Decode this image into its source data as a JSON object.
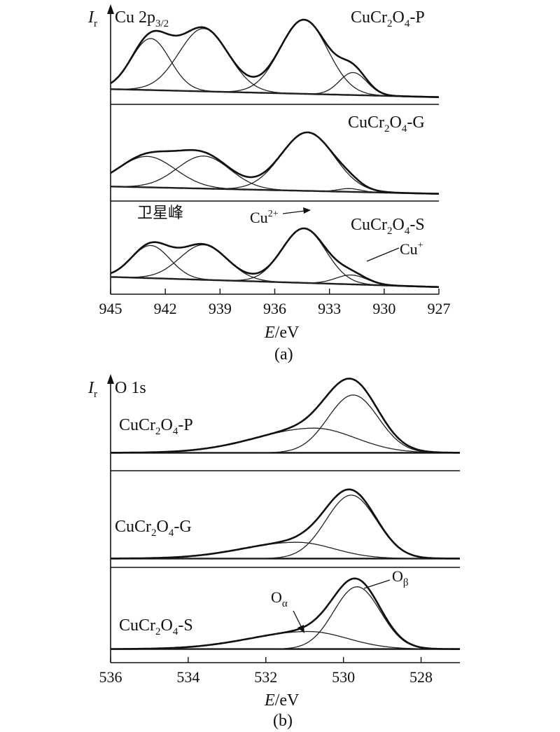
{
  "chart_data": [
    {
      "type": "line",
      "panel_label": "(a)",
      "axis_symbol": "I",
      "axis_subscript": "r",
      "element": "Cu 2p",
      "element_subscript": "3/2",
      "xlabel": "E",
      "xunit": "/eV",
      "xlim": [
        945,
        927
      ],
      "xticks": [
        "945",
        "942",
        "939",
        "936",
        "933",
        "930",
        "927"
      ],
      "annotation_satellite": "卫星峰",
      "annotation_cu2": "Cu",
      "annotation_cu2_sup": "2+",
      "annotation_cu1": "Cu",
      "annotation_cu1_sup": "+",
      "series": [
        {
          "formula": [
            "CuCr",
            "2",
            "O",
            "4",
            "-P"
          ],
          "peaks": [
            {
              "center": 942.8,
              "height": 0.64,
              "sigma": 1.05
            },
            {
              "center": 939.9,
              "height": 0.78,
              "sigma": 1.35
            },
            {
              "center": 934.4,
              "height": 0.92,
              "sigma": 1.3
            },
            {
              "center": 931.7,
              "height": 0.28,
              "sigma": 0.75
            }
          ],
          "baseline": [
            0.12,
            0.02
          ]
        },
        {
          "formula": [
            "CuCr",
            "2",
            "O",
            "4",
            "-G"
          ],
          "peaks": [
            {
              "center": 943.0,
              "height": 0.38,
              "sigma": 1.55
            },
            {
              "center": 939.9,
              "height": 0.4,
              "sigma": 1.45
            },
            {
              "center": 934.2,
              "height": 0.72,
              "sigma": 1.45
            },
            {
              "center": 931.9,
              "height": 0.04,
              "sigma": 0.6
            }
          ],
          "baseline": [
            0.11,
            0.02
          ]
        },
        {
          "formula": [
            "CuCr",
            "2",
            "O",
            "4",
            "-S"
          ],
          "peaks": [
            {
              "center": 942.8,
              "height": 0.42,
              "sigma": 1.05
            },
            {
              "center": 939.9,
              "height": 0.45,
              "sigma": 1.3
            },
            {
              "center": 934.4,
              "height": 0.7,
              "sigma": 1.2
            },
            {
              "center": 931.8,
              "height": 0.12,
              "sigma": 0.85
            }
          ],
          "baseline": [
            0.15,
            0.02
          ]
        }
      ]
    },
    {
      "type": "line",
      "panel_label": "(b)",
      "axis_symbol": "I",
      "axis_subscript": "r",
      "element": "O 1s",
      "xlabel": "E",
      "xunit": "/eV",
      "xlim": [
        536,
        527
      ],
      "xticks": [
        "536",
        "534",
        "532",
        "530",
        "528"
      ],
      "annotation_oalpha": "O",
      "annotation_oalpha_sub": "α",
      "annotation_obeta": "O",
      "annotation_obeta_sub": "β",
      "series": [
        {
          "formula": [
            "CuCr",
            "2",
            "O",
            "4",
            "-P"
          ],
          "peaks": [
            {
              "center": 530.75,
              "height": 0.32,
              "sigma": 1.05,
              "sigma_left": 1.5
            },
            {
              "center": 529.75,
              "height": 0.75,
              "sigma": 0.65
            }
          ],
          "baseline": [
            0.16,
            0.16
          ]
        },
        {
          "formula": [
            "CuCr",
            "2",
            "O",
            "4",
            "-G"
          ],
          "peaks": [
            {
              "center": 531.2,
              "height": 0.2,
              "sigma": 0.95,
              "sigma_left": 1.4
            },
            {
              "center": 529.8,
              "height": 0.78,
              "sigma": 0.65
            }
          ],
          "baseline": [
            0.04,
            0.04
          ]
        },
        {
          "formula": [
            "CuCr",
            "2",
            "O",
            "4",
            "-S"
          ],
          "peaks": [
            {
              "center": 530.9,
              "height": 0.22,
              "sigma": 1.0,
              "sigma_left": 1.5
            },
            {
              "center": 529.65,
              "height": 0.78,
              "sigma": 0.6
            }
          ],
          "baseline": [
            0.1,
            0.1
          ]
        }
      ]
    }
  ]
}
